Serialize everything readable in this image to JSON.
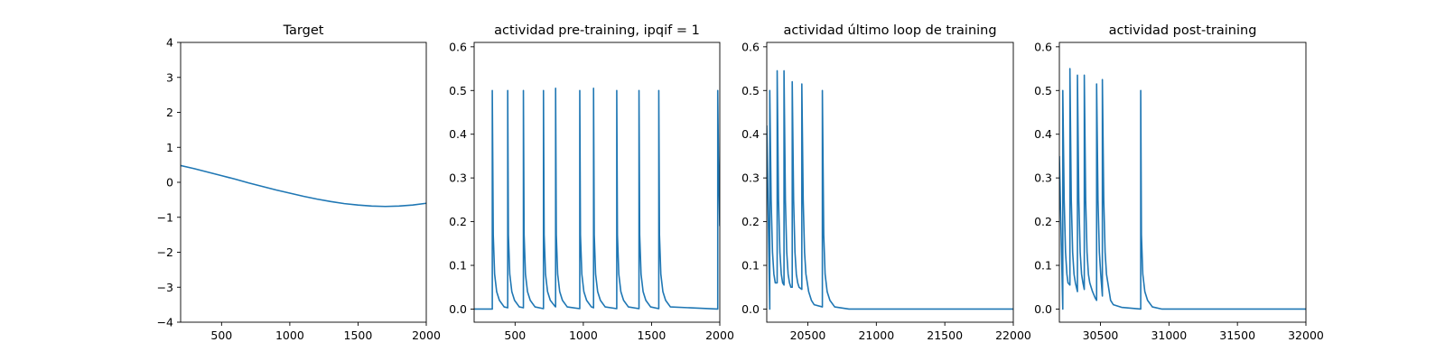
{
  "chart_data": [
    {
      "type": "line",
      "title": "Target",
      "xlim": [
        200,
        2000
      ],
      "ylim": [
        -4,
        4
      ],
      "xticks": [
        500,
        1000,
        1500,
        2000
      ],
      "yticks": [
        -4,
        -3,
        -2,
        -1,
        0,
        1,
        2,
        3,
        4
      ],
      "xlabel": "",
      "ylabel": "",
      "grid": false,
      "series": [
        {
          "color": "#1f77b4",
          "x": [
            200,
            300,
            400,
            500,
            600,
            700,
            800,
            900,
            1000,
            1100,
            1200,
            1300,
            1400,
            1500,
            1600,
            1700,
            1800,
            1900,
            2000
          ],
          "y": [
            0.48,
            0.39,
            0.29,
            0.19,
            0.09,
            -0.02,
            -0.12,
            -0.22,
            -0.31,
            -0.4,
            -0.48,
            -0.55,
            -0.61,
            -0.65,
            -0.68,
            -0.69,
            -0.68,
            -0.65,
            -0.6
          ]
        }
      ]
    },
    {
      "type": "line",
      "title": "actividad pre-training, ipqif = 1",
      "xlim": [
        200,
        2000
      ],
      "ylim": [
        -0.03,
        0.61
      ],
      "xticks": [
        500,
        1000,
        1500,
        2000
      ],
      "yticks": [
        0.0,
        0.1,
        0.2,
        0.3,
        0.4,
        0.5,
        0.6
      ],
      "xlabel": "",
      "ylabel": "",
      "grid": false,
      "series": [
        {
          "color": "#1f77b4",
          "x": [
            200,
            333,
            333,
            340,
            350,
            365,
            385,
            420,
            446,
            446,
            451,
            461,
            476,
            496,
            531,
            561,
            561,
            566,
            576,
            591,
            611,
            646,
            708,
            708,
            713,
            723,
            738,
            758,
            793,
            797,
            797,
            802,
            812,
            827,
            847,
            882,
            974,
            974,
            979,
            989,
            1004,
            1024,
            1059,
            1075,
            1075,
            1080,
            1090,
            1105,
            1125,
            1160,
            1245,
            1245,
            1250,
            1260,
            1275,
            1295,
            1330,
            1408,
            1408,
            1413,
            1423,
            1438,
            1458,
            1493,
            1553,
            1553,
            1558,
            1568,
            1583,
            1603,
            1638,
            1985,
            1985,
            1990,
            2000
          ],
          "y": [
            0.0,
            0.0,
            0.5,
            0.17,
            0.08,
            0.04,
            0.02,
            0.005,
            0.003,
            0.5,
            0.17,
            0.08,
            0.04,
            0.02,
            0.005,
            0.003,
            0.5,
            0.17,
            0.08,
            0.04,
            0.02,
            0.005,
            0.001,
            0.5,
            0.17,
            0.08,
            0.04,
            0.02,
            0.006,
            0.005,
            0.505,
            0.17,
            0.08,
            0.04,
            0.02,
            0.005,
            0.001,
            0.5,
            0.17,
            0.08,
            0.04,
            0.02,
            0.005,
            0.003,
            0.505,
            0.17,
            0.08,
            0.04,
            0.02,
            0.005,
            0.001,
            0.5,
            0.17,
            0.08,
            0.04,
            0.02,
            0.005,
            0.001,
            0.5,
            0.17,
            0.08,
            0.04,
            0.02,
            0.005,
            0.001,
            0.5,
            0.17,
            0.08,
            0.04,
            0.02,
            0.005,
            0.0,
            0.5,
            0.35,
            0.19
          ]
        }
      ]
    },
    {
      "type": "line",
      "title": "actividad último loop de training",
      "xlim": [
        20200,
        22000
      ],
      "ylim": [
        -0.03,
        0.61
      ],
      "xticks": [
        20500,
        21000,
        21500,
        22000
      ],
      "yticks": [
        0.0,
        0.1,
        0.2,
        0.3,
        0.4,
        0.5,
        0.6
      ],
      "xlabel": "",
      "ylabel": "",
      "grid": false,
      "series": [
        {
          "color": "#1f77b4",
          "x": [
            20200,
            20222,
            20222,
            20232,
            20242,
            20252,
            20262,
            20276,
            20276,
            20286,
            20296,
            20306,
            20316,
            20326,
            20326,
            20336,
            20346,
            20356,
            20366,
            20376,
            20386,
            20386,
            20396,
            20406,
            20416,
            20426,
            20436,
            20456,
            20456,
            20466,
            20476,
            20486,
            20496,
            20506,
            20526,
            20546,
            20606,
            20606,
            20616,
            20626,
            20641,
            20661,
            20696,
            20800,
            22000
          ],
          "y": [
            0.42,
            0.0,
            0.5,
            0.25,
            0.13,
            0.08,
            0.06,
            0.06,
            0.545,
            0.25,
            0.13,
            0.08,
            0.06,
            0.055,
            0.545,
            0.25,
            0.13,
            0.08,
            0.06,
            0.05,
            0.05,
            0.52,
            0.25,
            0.13,
            0.08,
            0.06,
            0.05,
            0.045,
            0.515,
            0.25,
            0.13,
            0.08,
            0.06,
            0.04,
            0.02,
            0.01,
            0.005,
            0.5,
            0.17,
            0.08,
            0.04,
            0.02,
            0.005,
            0.0,
            0.0
          ]
        }
      ]
    },
    {
      "type": "line",
      "title": "actividad post-training",
      "xlim": [
        30200,
        32000
      ],
      "ylim": [
        -0.03,
        0.61
      ],
      "xticks": [
        30500,
        31000,
        31500,
        32000
      ],
      "yticks": [
        0.0,
        0.1,
        0.2,
        0.3,
        0.4,
        0.5,
        0.6
      ],
      "xlabel": "",
      "ylabel": "",
      "grid": false,
      "series": [
        {
          "color": "#1f77b4",
          "x": [
            30200,
            30225,
            30225,
            30235,
            30245,
            30255,
            30263,
            30277,
            30277,
            30287,
            30297,
            30307,
            30317,
            30332,
            30332,
            30342,
            30352,
            30362,
            30372,
            30382,
            30382,
            30392,
            30402,
            30412,
            30422,
            30442,
            30462,
            30472,
            30472,
            30482,
            30492,
            30502,
            30514,
            30514,
            30524,
            30534,
            30544,
            30554,
            30564,
            30574,
            30594,
            30654,
            30794,
            30794,
            30799,
            30809,
            30824,
            30844,
            30879,
            30950,
            32000
          ],
          "y": [
            0.35,
            0.0,
            0.5,
            0.25,
            0.13,
            0.08,
            0.06,
            0.055,
            0.55,
            0.25,
            0.13,
            0.08,
            0.06,
            0.04,
            0.535,
            0.25,
            0.13,
            0.08,
            0.06,
            0.045,
            0.535,
            0.25,
            0.13,
            0.08,
            0.06,
            0.04,
            0.025,
            0.02,
            0.515,
            0.25,
            0.13,
            0.08,
            0.03,
            0.525,
            0.25,
            0.13,
            0.08,
            0.06,
            0.04,
            0.02,
            0.01,
            0.004,
            0.0,
            0.5,
            0.17,
            0.08,
            0.04,
            0.02,
            0.005,
            0.0,
            0.0
          ]
        }
      ]
    }
  ]
}
